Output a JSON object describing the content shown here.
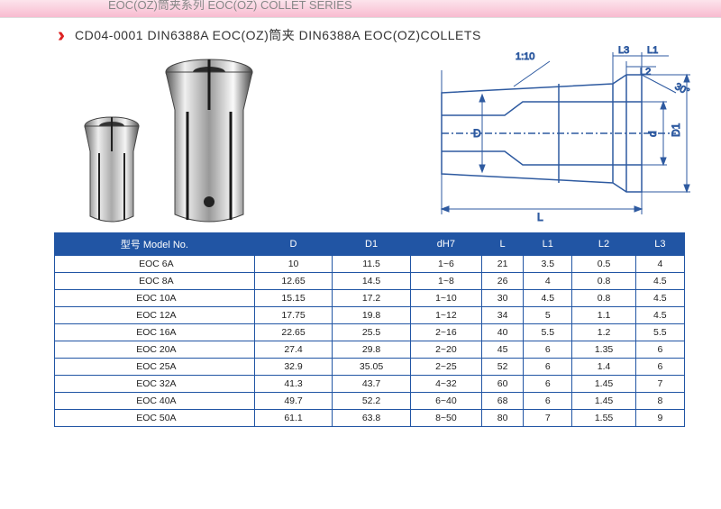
{
  "title_bar": "EOC(OZ)筒夹系列  EOC(OZ) COLLET SERIES",
  "subtitle": "CD04-0001 DIN6388A EOC(OZ)筒夹 DIN6388A EOC(OZ)COLLETS",
  "diagram_labels": {
    "taper": "1:10",
    "L": "L",
    "L1": "L1",
    "L2": "L2",
    "L3": "L3",
    "D": "D",
    "D1": "D1",
    "d": "d",
    "angle": "30°"
  },
  "table": {
    "columns": [
      "型号 Model No.",
      "D",
      "D1",
      "dH7",
      "L",
      "L1",
      "L2",
      "L3"
    ],
    "rows": [
      [
        "EOC 6A",
        "10",
        "11.5",
        "1~6",
        "21",
        "3.5",
        "0.5",
        "4"
      ],
      [
        "EOC 8A",
        "12.65",
        "14.5",
        "1~8",
        "26",
        "4",
        "0.8",
        "4.5"
      ],
      [
        "EOC 10A",
        "15.15",
        "17.2",
        "1~10",
        "30",
        "4.5",
        "0.8",
        "4.5"
      ],
      [
        "EOC 12A",
        "17.75",
        "19.8",
        "1~12",
        "34",
        "5",
        "1.1",
        "4.5"
      ],
      [
        "EOC 16A",
        "22.65",
        "25.5",
        "2~16",
        "40",
        "5.5",
        "1.2",
        "5.5"
      ],
      [
        "EOC 20A",
        "27.4",
        "29.8",
        "2~20",
        "45",
        "6",
        "1.35",
        "6"
      ],
      [
        "EOC 25A",
        "32.9",
        "35.05",
        "2~25",
        "52",
        "6",
        "1.4",
        "6"
      ],
      [
        "EOC 32A",
        "41.3",
        "43.7",
        "4~32",
        "60",
        "6",
        "1.45",
        "7"
      ],
      [
        "EOC 40A",
        "49.7",
        "52.2",
        "6~40",
        "68",
        "6",
        "1.45",
        "8"
      ],
      [
        "EOC 50A",
        "61.1",
        "63.8",
        "8~50",
        "80",
        "7",
        "1.55",
        "9"
      ]
    ],
    "header_bg": "#2155a4",
    "header_fg": "#ffffff",
    "border_color": "#2155a4"
  }
}
